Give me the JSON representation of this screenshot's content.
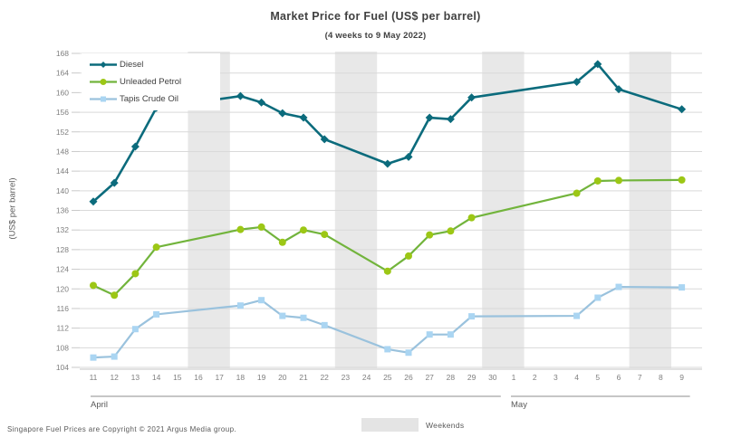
{
  "title": "Market Price for Fuel (US$ per barrel)",
  "subtitle": "(4 weeks to 9 May 2022)",
  "footer": "Singapore Fuel Prices are Copyright © 2021 Argus Media group.",
  "weekends_label": "Weekends",
  "chart_data": {
    "type": "line",
    "title": "Market Price for Fuel (US$ per barrel)",
    "subtitle": "(4 weeks to 9 May 2022)",
    "ylabel": "(US$ per barrel)",
    "ylim": [
      104,
      168
    ],
    "ytick_step": 4,
    "grid": true,
    "legend_position": "top-left",
    "x_axis": {
      "tick_labels": [
        "11",
        "12",
        "13",
        "14",
        "15",
        "16",
        "17",
        "18",
        "19",
        "20",
        "21",
        "22",
        "23",
        "24",
        "25",
        "26",
        "27",
        "28",
        "29",
        "30",
        "1",
        "2",
        "3",
        "4",
        "5",
        "6",
        "7",
        "8",
        "9"
      ],
      "month_groups": [
        {
          "label": "April",
          "start_index": 0,
          "end_index": 19
        },
        {
          "label": "May",
          "start_index": 20,
          "end_index": 28
        }
      ]
    },
    "weekend_bands": {
      "label": "Weekends",
      "index_pairs": [
        [
          5,
          6
        ],
        [
          12,
          13
        ],
        [
          19,
          20
        ],
        [
          26,
          27
        ]
      ]
    },
    "data_point_days": [
      "Apr 11",
      "Apr 12",
      "Apr 13",
      "Apr 14",
      "Apr 18",
      "Apr 19",
      "Apr 20",
      "Apr 21",
      "Apr 22",
      "Apr 25",
      "Apr 26",
      "Apr 27",
      "Apr 28",
      "Apr 29",
      "May 4",
      "May 5",
      "May 6",
      "May 9"
    ],
    "data_point_indices": [
      0,
      1,
      2,
      3,
      7,
      8,
      9,
      10,
      11,
      14,
      15,
      16,
      17,
      18,
      23,
      24,
      25,
      28
    ],
    "series": [
      {
        "name": "Diesel",
        "marker": "diamond",
        "line_color": "#0b6b7c",
        "marker_color": "#0b6b7c",
        "values": [
          137.8,
          141.6,
          149.0,
          156.9,
          159.3,
          158.0,
          155.8,
          154.9,
          150.5,
          145.5,
          146.9,
          154.9,
          154.6,
          159.0,
          162.2,
          165.8,
          160.7,
          156.6
        ]
      },
      {
        "name": "Unleaded Petrol",
        "marker": "circle",
        "line_color": "#72b43c",
        "marker_color": "#9cc715",
        "values": [
          120.7,
          118.7,
          123.1,
          128.5,
          132.1,
          132.6,
          129.5,
          132.0,
          131.1,
          123.6,
          126.7,
          131.0,
          131.8,
          134.5,
          139.5,
          142.0,
          142.1,
          142.2
        ]
      },
      {
        "name": "Tapis Crude Oil",
        "marker": "square",
        "line_color": "#9ac2dd",
        "marker_color": "#aad5f2",
        "values": [
          106.0,
          106.2,
          111.8,
          114.8,
          116.6,
          117.7,
          114.5,
          114.1,
          112.6,
          107.7,
          107.0,
          110.7,
          110.7,
          114.4,
          114.5,
          118.2,
          120.4,
          120.3
        ]
      }
    ],
    "colors": {
      "weekend_band": "#e8e8e8",
      "gridline": "#d9d9d9",
      "axis_line": "#c6c6c6",
      "tick_text": "#7f7f7f",
      "title_text": "#404040",
      "month_text": "#595959"
    }
  }
}
